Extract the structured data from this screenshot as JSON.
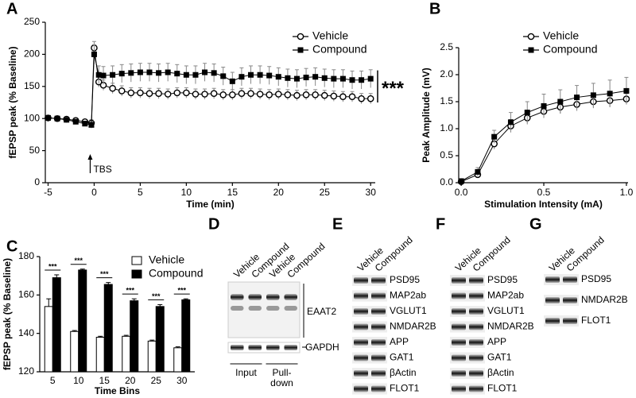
{
  "chart_data": [
    {
      "type": "line",
      "panel": "A",
      "xlabel": "Time (min)",
      "ylabel": "fEPSP peak (% Baseline)",
      "x": [
        -5,
        -4,
        -3,
        -2,
        -1,
        -0.3,
        0,
        0.5,
        1,
        2,
        3,
        4,
        5,
        6,
        7,
        8,
        9,
        10,
        11,
        12,
        13,
        14,
        15,
        16,
        17,
        18,
        19,
        20,
        21,
        22,
        23,
        24,
        25,
        26,
        27,
        28,
        29,
        30
      ],
      "series": [
        {
          "name": "Vehicle",
          "color": "#000000",
          "marker": "circle-open",
          "values": [
            101,
            100,
            99,
            97,
            95,
            93,
            210,
            157,
            152,
            147,
            143,
            140,
            140,
            139,
            139,
            138,
            140,
            140,
            138,
            138,
            139,
            137,
            137,
            139,
            139,
            138,
            137,
            138,
            137,
            136,
            137,
            137,
            136,
            135,
            134,
            134,
            131,
            131
          ],
          "errors": [
            4,
            4,
            4,
            4,
            4,
            5,
            10,
            8,
            8,
            8,
            8,
            8,
            8,
            8,
            8,
            8,
            8,
            8,
            8,
            8,
            8,
            8,
            8,
            8,
            8,
            8,
            8,
            8,
            8,
            8,
            8,
            8,
            8,
            8,
            8,
            8,
            8,
            8
          ]
        },
        {
          "name": "Compound",
          "color": "#000000",
          "marker": "square",
          "values": [
            101,
            100,
            98,
            95,
            92,
            90,
            200,
            168,
            167,
            168,
            170,
            171,
            172,
            172,
            171,
            172,
            170,
            168,
            168,
            172,
            171,
            166,
            158,
            165,
            168,
            168,
            167,
            165,
            163,
            162,
            164,
            165,
            163,
            162,
            162,
            160,
            160,
            162
          ],
          "errors": [
            4,
            4,
            4,
            4,
            4,
            5,
            15,
            14,
            14,
            14,
            14,
            14,
            14,
            14,
            14,
            14,
            14,
            14,
            14,
            14,
            14,
            14,
            14,
            14,
            14,
            14,
            14,
            14,
            14,
            14,
            14,
            14,
            14,
            14,
            14,
            14,
            14,
            14
          ]
        }
      ],
      "xlim": [
        -5.3,
        30.5
      ],
      "xticks": [
        -5,
        0,
        5,
        10,
        15,
        20,
        25,
        30
      ],
      "ylim": [
        0,
        250
      ],
      "yticks": [
        0,
        50,
        100,
        150,
        200,
        250
      ],
      "legend": "upper right",
      "annotations": [
        "***",
        "TBS"
      ]
    },
    {
      "type": "line",
      "panel": "B",
      "xlabel": "Stimulation Intensity (mA)",
      "ylabel": "Peak Amplitude (mV)",
      "x": [
        0,
        0.1,
        0.2,
        0.3,
        0.4,
        0.5,
        0.6,
        0.7,
        0.8,
        0.9,
        1.0
      ],
      "series": [
        {
          "name": "Vehicle",
          "color": "#000000",
          "marker": "circle-open",
          "values": [
            0.02,
            0.15,
            0.72,
            1.05,
            1.2,
            1.32,
            1.4,
            1.45,
            1.5,
            1.52,
            1.55
          ],
          "errors": [
            0.02,
            0.05,
            0.1,
            0.12,
            0.12,
            0.12,
            0.12,
            0.12,
            0.12,
            0.12,
            0.1
          ]
        },
        {
          "name": "Compound",
          "color": "#000000",
          "marker": "square",
          "values": [
            0.03,
            0.2,
            0.85,
            1.12,
            1.3,
            1.42,
            1.5,
            1.58,
            1.62,
            1.65,
            1.7
          ],
          "errors": [
            0.02,
            0.08,
            0.12,
            0.18,
            0.2,
            0.22,
            0.22,
            0.22,
            0.22,
            0.25,
            0.25
          ]
        }
      ],
      "xlim": [
        -0.015,
        1.01
      ],
      "xticks": [
        {
          "value": 0,
          "label": "0.0"
        },
        0.5,
        {
          "value": 1,
          "label": "1.0"
        }
      ],
      "ylim": [
        0,
        2.5
      ],
      "yticks": [
        {
          "value": 0,
          "label": "0.0"
        },
        0.5,
        {
          "value": 1,
          "label": "1.0"
        },
        1.5,
        {
          "value": 2,
          "label": "2.0"
        },
        2.5
      ],
      "legend": "upper right"
    },
    {
      "type": "bar",
      "panel": "C",
      "xlabel": "Time Bins",
      "ylabel": "fEPSP peak (% Baseline)",
      "categories": [
        "5",
        "10",
        "15",
        "20",
        "25",
        "30"
      ],
      "series": [
        {
          "name": "Vehicle",
          "color": "#ffffff",
          "values": [
            154,
            141,
            138,
            138.5,
            136,
            132.5
          ],
          "errors": [
            4,
            0.5,
            0.5,
            0.5,
            0.5,
            0.5
          ]
        },
        {
          "name": "Compound",
          "color": "#000000",
          "values": [
            169,
            173,
            165.5,
            157,
            154,
            157.5
          ],
          "errors": [
            1.5,
            0.5,
            1,
            1,
            1,
            0.5
          ]
        }
      ],
      "ylim": [
        120,
        180
      ],
      "yticks": [
        120,
        140,
        160,
        180
      ],
      "legend": "upper right",
      "significance": [
        "***",
        "***",
        "***",
        "***",
        "***",
        "***"
      ]
    }
  ],
  "blots": [
    {
      "panel": "D",
      "lanes": [
        "Vehicle",
        "Compound",
        "Vehicle",
        "Compound"
      ],
      "bands": [
        "EAAT2",
        "GAPDH"
      ],
      "groups": [
        [
          "Input"
        ],
        [
          "Pull-",
          "down"
        ]
      ]
    },
    {
      "panel": "E",
      "lanes": [
        "Vehicle",
        "Compound"
      ],
      "bands": [
        "PSD95",
        "MAP2ab",
        "VGLUT1",
        "NMDAR2B",
        "APP",
        "GAT1",
        "βActin",
        "FLOT1"
      ]
    },
    {
      "panel": "F",
      "lanes": [
        "Vehicle",
        "Compound"
      ],
      "bands": [
        "PSD95",
        "MAP2ab",
        "VGLUT1",
        "NMDAR2B",
        "APP",
        "GAT1",
        "βActin",
        "FLOT1"
      ]
    },
    {
      "panel": "G",
      "lanes": [
        "Vehicle",
        "Compound"
      ],
      "bands": [
        "PSD95",
        "NMDAR2B",
        "FLOT1"
      ]
    }
  ]
}
